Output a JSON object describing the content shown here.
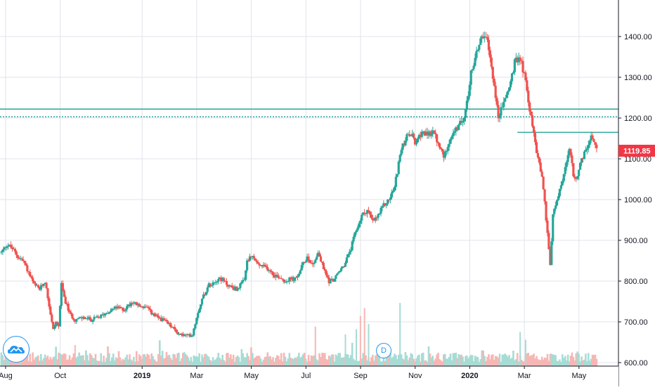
{
  "chart_data": {
    "type": "candlestick",
    "price_axis": {
      "min": 600,
      "max": 1480,
      "ticks": [
        "1400.00",
        "1300.00",
        "1200.00",
        "1100.00",
        "1000.00",
        "900.00",
        "800.00",
        "700.00",
        "600.00"
      ]
    },
    "time_axis": {
      "labels": [
        {
          "text": "Aug",
          "bold": false,
          "t": 0.0
        },
        {
          "text": "Oct",
          "bold": false,
          "t": 2.0
        },
        {
          "text": "2019",
          "bold": true,
          "t": 5.0
        },
        {
          "text": "Mar",
          "bold": false,
          "t": 7.0
        },
        {
          "text": "May",
          "bold": false,
          "t": 9.0
        },
        {
          "text": "Jul",
          "bold": false,
          "t": 11.0
        },
        {
          "text": "Sep",
          "bold": false,
          "t": 13.0
        },
        {
          "text": "Nov",
          "bold": false,
          "t": 15.0
        },
        {
          "text": "2020",
          "bold": true,
          "t": 17.0
        },
        {
          "text": "Mar",
          "bold": false,
          "t": 19.0
        },
        {
          "text": "May",
          "bold": false,
          "t": 21.0
        }
      ]
    },
    "last_price": "1119.85",
    "last_price_value": 1119.85,
    "horizontal_levels": [
      {
        "value": 1222,
        "style": "solid",
        "from": "start"
      },
      {
        "value": 1203,
        "style": "dotted",
        "from": "start"
      },
      {
        "value": 1165,
        "style": "solid",
        "from": "2020-03"
      }
    ],
    "price_path": [
      [
        0.0,
        870
      ],
      [
        0.2,
        890
      ],
      [
        0.4,
        880
      ],
      [
        0.6,
        860
      ],
      [
        0.8,
        850
      ],
      [
        1.0,
        820
      ],
      [
        1.2,
        790
      ],
      [
        1.4,
        780
      ],
      [
        1.6,
        800
      ],
      [
        1.8,
        720
      ],
      [
        1.9,
        680
      ],
      [
        2.0,
        700
      ],
      [
        2.1,
        690
      ],
      [
        2.2,
        790
      ],
      [
        2.3,
        760
      ],
      [
        2.5,
        720
      ],
      [
        2.7,
        705
      ],
      [
        3.0,
        710
      ],
      [
        3.3,
        705
      ],
      [
        3.6,
        712
      ],
      [
        3.9,
        725
      ],
      [
        4.2,
        735
      ],
      [
        4.5,
        730
      ],
      [
        4.8,
        750
      ],
      [
        5.0,
        740
      ],
      [
        5.3,
        735
      ],
      [
        5.6,
        715
      ],
      [
        5.9,
        705
      ],
      [
        6.2,
        690
      ],
      [
        6.5,
        670
      ],
      [
        6.8,
        665
      ],
      [
        7.0,
        670
      ],
      [
        7.2,
        725
      ],
      [
        7.4,
        765
      ],
      [
        7.6,
        790
      ],
      [
        7.8,
        800
      ],
      [
        8.0,
        808
      ],
      [
        8.3,
        790
      ],
      [
        8.6,
        780
      ],
      [
        8.9,
        800
      ],
      [
        9.0,
        850
      ],
      [
        9.2,
        860
      ],
      [
        9.4,
        840
      ],
      [
        9.6,
        835
      ],
      [
        9.8,
        830
      ],
      [
        10.0,
        815
      ],
      [
        10.2,
        810
      ],
      [
        10.4,
        800
      ],
      [
        10.6,
        805
      ],
      [
        10.8,
        805
      ],
      [
        11.0,
        835
      ],
      [
        11.2,
        860
      ],
      [
        11.4,
        840
      ],
      [
        11.6,
        870
      ],
      [
        11.8,
        830
      ],
      [
        12.0,
        800
      ],
      [
        12.2,
        805
      ],
      [
        12.4,
        825
      ],
      [
        12.6,
        845
      ],
      [
        12.8,
        880
      ],
      [
        13.0,
        925
      ],
      [
        13.2,
        960
      ],
      [
        13.4,
        975
      ],
      [
        13.6,
        945
      ],
      [
        13.8,
        960
      ],
      [
        14.0,
        985
      ],
      [
        14.2,
        1000
      ],
      [
        14.4,
        1030
      ],
      [
        14.6,
        1110
      ],
      [
        14.8,
        1150
      ],
      [
        15.0,
        1160
      ],
      [
        15.2,
        1135
      ],
      [
        15.4,
        1170
      ],
      [
        15.6,
        1155
      ],
      [
        15.8,
        1170
      ],
      [
        16.0,
        1135
      ],
      [
        16.2,
        1105
      ],
      [
        16.4,
        1145
      ],
      [
        16.6,
        1165
      ],
      [
        16.8,
        1185
      ],
      [
        17.0,
        1215
      ],
      [
        17.2,
        1310
      ],
      [
        17.4,
        1360
      ],
      [
        17.6,
        1405
      ],
      [
        17.8,
        1385
      ],
      [
        18.0,
        1305
      ],
      [
        18.2,
        1200
      ],
      [
        18.4,
        1240
      ],
      [
        18.6,
        1275
      ],
      [
        18.8,
        1335
      ],
      [
        19.0,
        1350
      ],
      [
        19.2,
        1290
      ],
      [
        19.4,
        1200
      ],
      [
        19.6,
        1120
      ],
      [
        19.8,
        1060
      ],
      [
        20.0,
        920
      ],
      [
        20.1,
        840
      ],
      [
        20.2,
        960
      ],
      [
        20.4,
        1010
      ],
      [
        20.6,
        1060
      ],
      [
        20.8,
        1120
      ],
      [
        21.0,
        1045
      ],
      [
        21.2,
        1085
      ],
      [
        21.4,
        1120
      ],
      [
        21.6,
        1150
      ],
      [
        21.8,
        1119.85
      ]
    ],
    "volume_scale": {
      "max": 140
    },
    "volume_spikes": [
      {
        "t": 12.6,
        "v": 60
      },
      {
        "t": 13.0,
        "v": 70
      },
      {
        "t": 13.15,
        "v": 95
      },
      {
        "t": 13.3,
        "v": 110
      },
      {
        "t": 13.45,
        "v": 80
      },
      {
        "t": 13.8,
        "v": 40
      },
      {
        "t": 14.6,
        "v": 120
      },
      {
        "t": 11.5,
        "v": 75
      },
      {
        "t": 2.7,
        "v": 40
      },
      {
        "t": 19.0,
        "v": 65
      },
      {
        "t": 19.2,
        "v": 50
      }
    ],
    "colors": {
      "up": "#26a69a",
      "down": "#ef5350",
      "up_volume": "#a7dcd5",
      "down_volume": "#f6b7b4",
      "level_line": "#26a69a",
      "price_tag": "#f23645",
      "grid": "#e0e3eb",
      "axis_text": "#131722"
    },
    "grid": true,
    "legend": "none"
  },
  "badges": {
    "event_marker": "D",
    "logo_icon": "cloud-logo-icon"
  }
}
